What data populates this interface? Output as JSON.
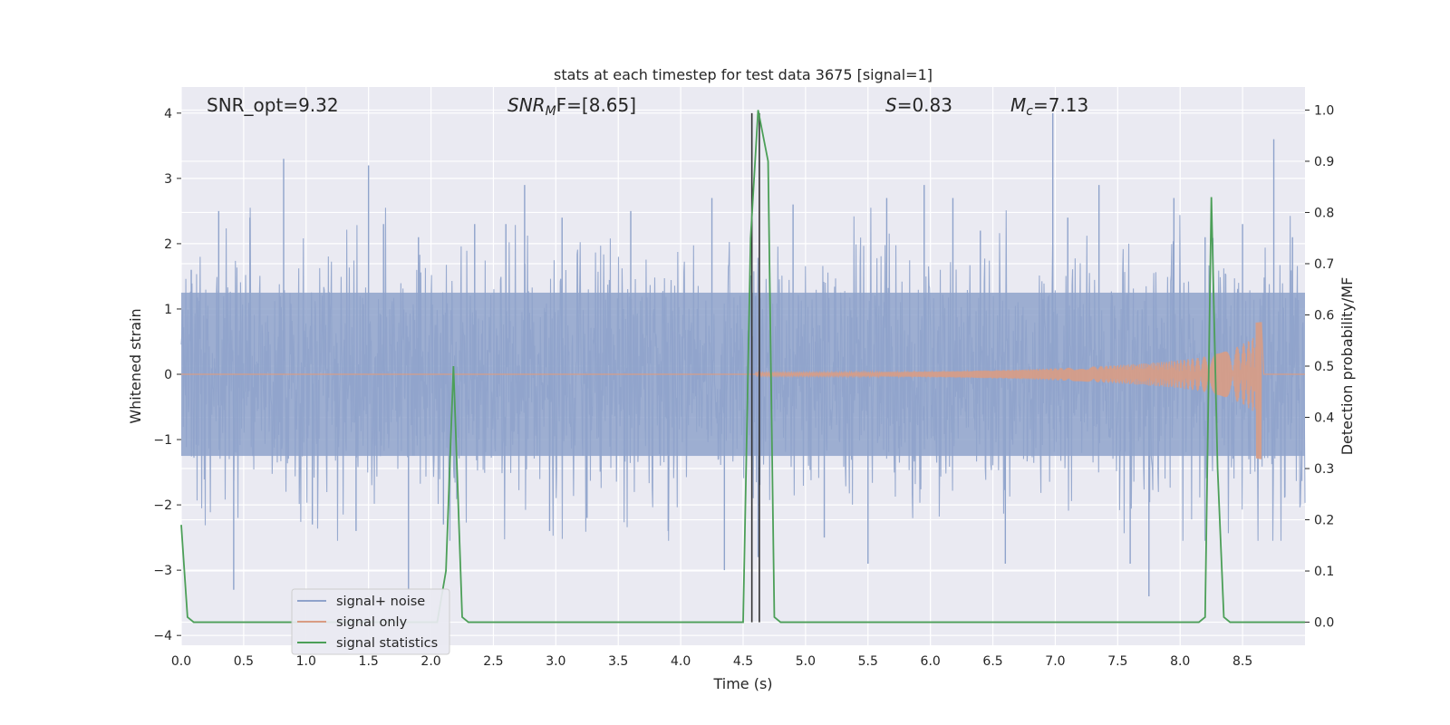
{
  "chart_data": {
    "type": "line",
    "title": "stats at each timestep for test data 3675 [signal=1]",
    "xlabel": "Time (s)",
    "ylabel": "Whitened strain",
    "y2label": "Detection probability/MF",
    "xlim": [
      0,
      9.0
    ],
    "ylim": [
      -4.15,
      4.4
    ],
    "y2lim": [
      -0.045,
      1.045
    ],
    "x_ticks": [
      0.0,
      0.5,
      1.0,
      1.5,
      2.0,
      2.5,
      3.0,
      3.5,
      4.0,
      4.5,
      5.0,
      5.5,
      6.0,
      6.5,
      7.0,
      7.5,
      8.0,
      8.5
    ],
    "x_tick_labels": [
      "0.0",
      "0.5",
      "1.0",
      "1.5",
      "2.0",
      "2.5",
      "3.0",
      "3.5",
      "4.0",
      "4.5",
      "5.0",
      "5.5",
      "6.0",
      "6.5",
      "7.0",
      "7.5",
      "8.0",
      "8.5"
    ],
    "y_ticks": [
      4,
      3,
      2,
      1,
      0,
      -1,
      -2,
      -3,
      -4
    ],
    "y_tick_labels": [
      "4",
      "3",
      "2",
      "1",
      "0",
      "−1",
      "−2",
      "−3",
      "−4"
    ],
    "y2_ticks": [
      1.0,
      0.9,
      0.8,
      0.7,
      0.6,
      0.5,
      0.4,
      0.3,
      0.2,
      0.1,
      0.0
    ],
    "y2_tick_labels": [
      "1.0",
      "0.9",
      "0.8",
      "0.7",
      "0.6",
      "0.5",
      "0.4",
      "0.3",
      "0.2",
      "0.1",
      "0.0"
    ],
    "grid": true,
    "annotations": {
      "snr_opt": "SNR_opt=9.32",
      "snr_mf_sym": "SNR",
      "snr_mf_sub": "M",
      "snr_mf_rest": "F=[8.65]",
      "s_sym": "S",
      "s_rest": "=0.83",
      "mc_sym": "M",
      "mc_sub": "c",
      "mc_rest": "=7.13"
    },
    "vertical_lines_x": [
      4.57,
      4.63
    ],
    "series": [
      {
        "name": "signal+ noise",
        "color": "#8fa3cb",
        "axis": "left",
        "envelope": {
          "x": [
            0.0,
            9.0
          ],
          "typical_amplitude": 1.5,
          "spikes": [
            {
              "x": 0.08,
              "y": 1.6
            },
            {
              "x": 0.3,
              "y": 2.5
            },
            {
              "x": 0.42,
              "y": -3.3
            },
            {
              "x": 0.55,
              "y": 2.4
            },
            {
              "x": 0.82,
              "y": 3.3
            },
            {
              "x": 1.05,
              "y": -2.3
            },
            {
              "x": 1.4,
              "y": -2.4
            },
            {
              "x": 1.5,
              "y": 3.2
            },
            {
              "x": 1.62,
              "y": 2.3
            },
            {
              "x": 1.82,
              "y": -3.3
            },
            {
              "x": 1.9,
              "y": 2.1
            },
            {
              "x": 2.1,
              "y": -2.3
            },
            {
              "x": 2.35,
              "y": 2.3
            },
            {
              "x": 2.6,
              "y": 2.3
            },
            {
              "x": 2.75,
              "y": 2.9
            },
            {
              "x": 2.95,
              "y": -2.4
            },
            {
              "x": 3.05,
              "y": 2.4
            },
            {
              "x": 3.25,
              "y": -2.2
            },
            {
              "x": 3.6,
              "y": 2.5
            },
            {
              "x": 3.9,
              "y": -2.4
            },
            {
              "x": 4.25,
              "y": 2.7
            },
            {
              "x": 4.35,
              "y": -3.0
            },
            {
              "x": 4.62,
              "y": -2.8
            },
            {
              "x": 4.9,
              "y": 2.6
            },
            {
              "x": 5.15,
              "y": -2.5
            },
            {
              "x": 5.5,
              "y": -2.9
            },
            {
              "x": 5.65,
              "y": 2.7
            },
            {
              "x": 5.95,
              "y": 2.9
            },
            {
              "x": 6.18,
              "y": 2.7
            },
            {
              "x": 6.4,
              "y": 2.2
            },
            {
              "x": 6.6,
              "y": -2.9
            },
            {
              "x": 6.98,
              "y": 4.0
            },
            {
              "x": 7.1,
              "y": 2.4
            },
            {
              "x": 7.35,
              "y": 2.9
            },
            {
              "x": 7.6,
              "y": -2.9
            },
            {
              "x": 7.75,
              "y": -3.4
            },
            {
              "x": 7.95,
              "y": 2.7
            },
            {
              "x": 8.2,
              "y": 2.1
            },
            {
              "x": 8.5,
              "y": 2.3
            },
            {
              "x": 8.75,
              "y": 3.6
            },
            {
              "x": 8.9,
              "y": 2.1
            }
          ]
        }
      },
      {
        "name": "signal only",
        "color": "#d99c84",
        "axis": "left",
        "chirp_start_x": 4.6,
        "chirp_peak_x": 8.65,
        "chirp_peak_y": [
          0.8,
          -1.3
        ],
        "after_peak_y": 0.0
      },
      {
        "name": "signal statistics",
        "color": "#4c9f58",
        "axis": "right",
        "x": [
          0.0,
          0.05,
          0.1,
          0.15,
          2.05,
          2.12,
          2.18,
          2.25,
          2.3,
          4.5,
          4.56,
          4.62,
          4.7,
          4.75,
          4.8,
          8.15,
          8.2,
          8.25,
          8.3,
          8.35,
          8.4,
          9.0
        ],
        "y": [
          0.19,
          0.01,
          0.0,
          0.0,
          0.0,
          0.1,
          0.5,
          0.01,
          0.0,
          0.0,
          0.75,
          1.0,
          0.9,
          0.01,
          0.0,
          0.0,
          0.01,
          0.83,
          0.3,
          0.01,
          0.0,
          0.0
        ]
      }
    ],
    "legend": {
      "position": "lower-left",
      "entries": [
        "signal+ noise",
        "signal only",
        "signal statistics"
      ]
    }
  }
}
